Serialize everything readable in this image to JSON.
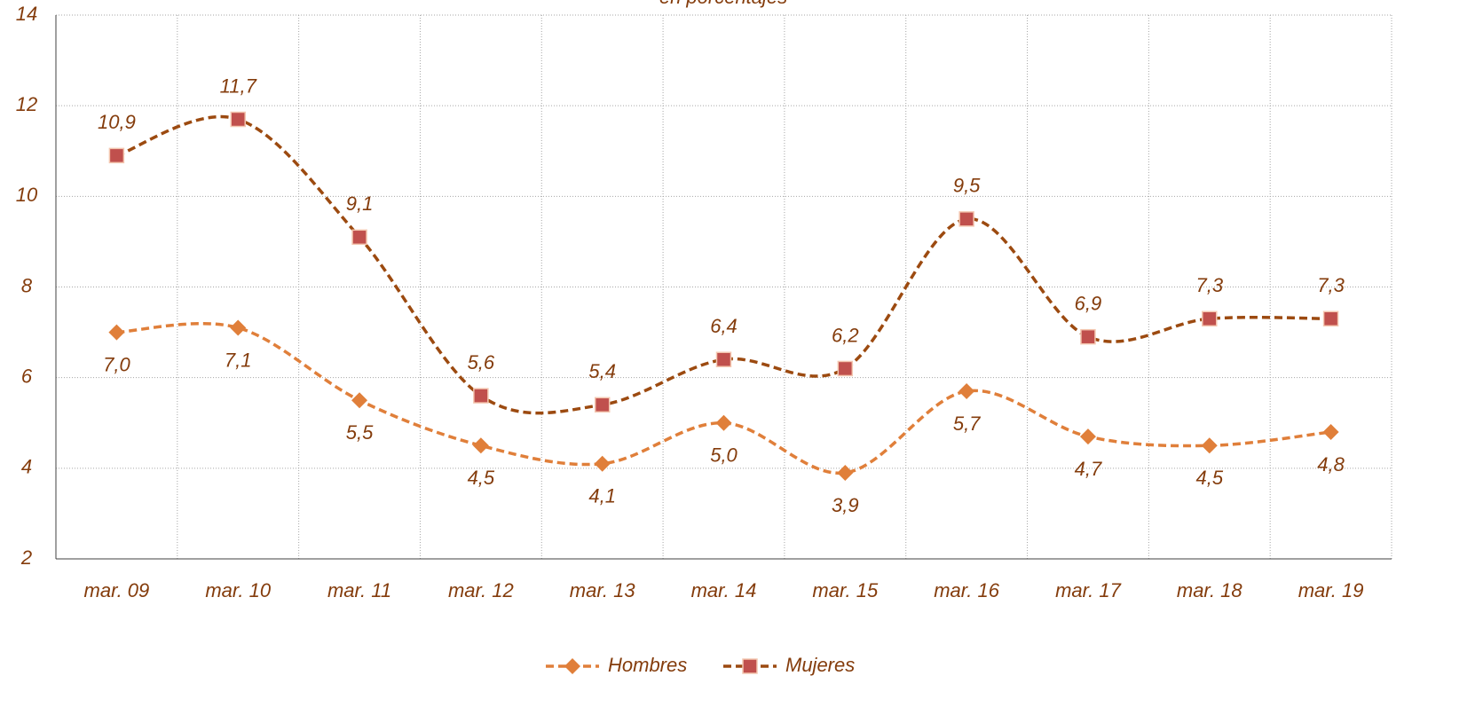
{
  "chart_data": {
    "type": "line",
    "subtitle": "en porcentajes",
    "categories": [
      "mar. 09",
      "mar. 10",
      "mar. 11",
      "mar. 12",
      "mar. 13",
      "mar. 14",
      "mar. 15",
      "mar. 16",
      "mar. 17",
      "mar. 18",
      "mar. 19"
    ],
    "series": [
      {
        "name": "Hombres",
        "color": "#e07f3a",
        "marker": "diamond",
        "values": [
          7.0,
          7.1,
          5.5,
          4.5,
          4.1,
          5.0,
          3.9,
          5.7,
          4.7,
          4.5,
          4.8
        ],
        "value_labels": [
          "7,0",
          "7,1",
          "5,5",
          "4,5",
          "4,1",
          "5,0",
          "3,9",
          "5,7",
          "4,7",
          "4,5",
          "4,8"
        ]
      },
      {
        "name": "Mujeres",
        "color": "#9c4a10",
        "marker_color": "#c0504d",
        "marker": "square",
        "values": [
          10.9,
          11.7,
          9.1,
          5.6,
          5.4,
          6.4,
          6.2,
          9.5,
          6.9,
          7.3,
          7.3
        ],
        "value_labels": [
          "10,9",
          "11,7",
          "9,1",
          "5,6",
          "5,4",
          "6,4",
          "6,2",
          "9,5",
          "6,9",
          "7,3",
          "7,3"
        ]
      }
    ],
    "ylim": [
      2,
      14
    ],
    "yticks": [
      2,
      4,
      6,
      8,
      10,
      12,
      14
    ],
    "grid": true,
    "legend": "bottom"
  }
}
